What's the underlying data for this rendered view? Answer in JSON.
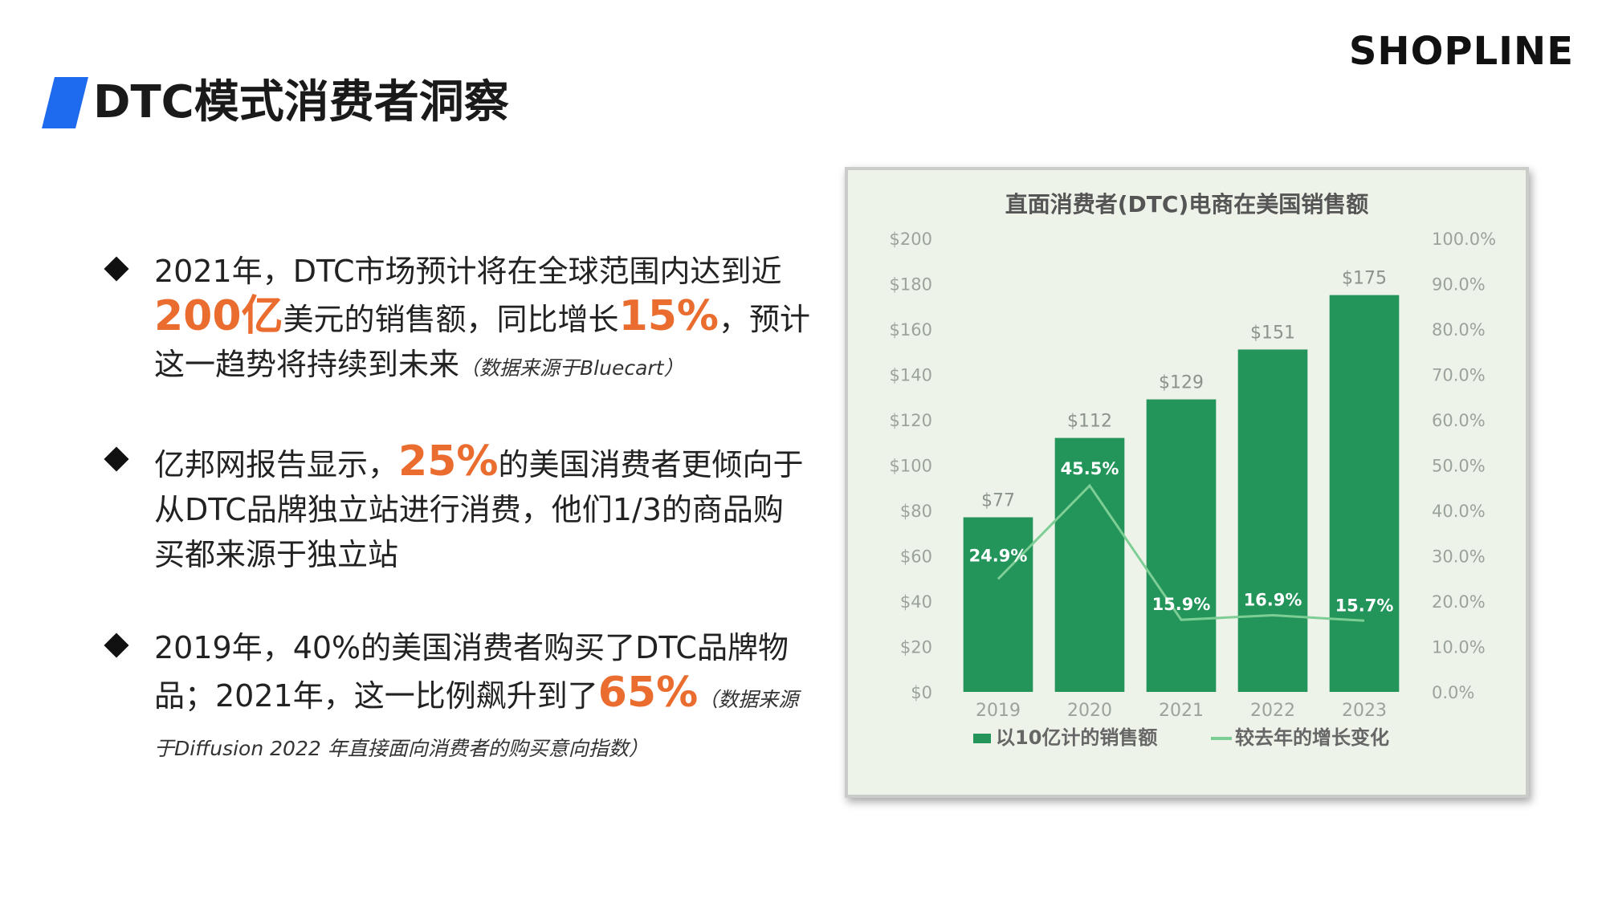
{
  "header": {
    "title": "DTC模式消费者洞察",
    "brand": "SHOPLINE"
  },
  "bullets": [
    {
      "p1": "2021年，DTC市场预计将在全球范围内达到近",
      "h1": "200亿",
      "p2": "美元的销售额，同比增长",
      "h2": "15%",
      "p3": "，预计这一趋势将持续到未来",
      "note": "（数据来源于Bluecart）"
    },
    {
      "p1": "亿邦网报告显示，",
      "h1": "25%",
      "p2": "的美国消费者更倾向于从DTC品牌独立站进行消费，他们1/3的商品购买都来源于独立站"
    },
    {
      "p1": "2019年，40%的美国消费者购买了DTC品牌物品；2021年，这一比例飙升到了",
      "h1": "65%",
      "note": "（数据来源于Diffusion 2022 年直接面向消费者的购买意向指数）"
    }
  ],
  "colors": {
    "bar": "#23945a",
    "line": "#7dce95",
    "highlight": "#ea6d2f",
    "accent": "#1f6bf0",
    "chart_bg": "#eef3ea"
  },
  "chart_data": {
    "type": "bar",
    "title": "直面消费者(DTC)电商在美国销售额",
    "categories": [
      "2019",
      "2020",
      "2021",
      "2022",
      "2023"
    ],
    "series": [
      {
        "name": "以10亿计的销售额",
        "type": "bar",
        "axis": "left",
        "values": [
          77,
          112,
          129,
          151,
          175
        ],
        "labels": [
          "$77",
          "$112",
          "$129",
          "$151",
          "$175"
        ]
      },
      {
        "name": "较去年的增长变化",
        "type": "line",
        "axis": "right",
        "values": [
          24.9,
          45.5,
          15.9,
          16.9,
          15.7
        ],
        "labels": [
          "24.9%",
          "45.5%",
          "15.9%",
          "16.9%",
          "15.7%"
        ]
      }
    ],
    "y_left": {
      "range": [
        0,
        200
      ],
      "ticks": [
        "$0",
        "$20",
        "$40",
        "$60",
        "$80",
        "$100",
        "$120",
        "$140",
        "$160",
        "$180",
        "$200"
      ]
    },
    "y_right": {
      "range": [
        0,
        100
      ],
      "ticks": [
        "0.0%",
        "10.0%",
        "20.0%",
        "30.0%",
        "40.0%",
        "50.0%",
        "60.0%",
        "70.0%",
        "80.0%",
        "90.0%",
        "100.0%"
      ]
    },
    "grid": false,
    "legend": "bottom"
  }
}
